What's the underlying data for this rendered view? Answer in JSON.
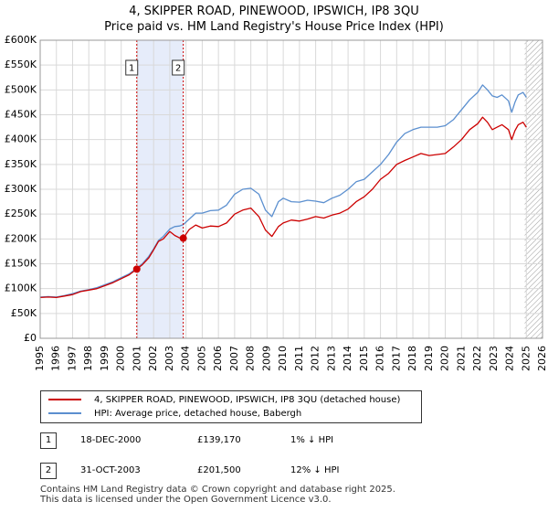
{
  "title": {
    "line1": "4, SKIPPER ROAD, PINEWOOD, IPSWICH, IP8 3QU",
    "line2": "Price paid vs. HM Land Registry's House Price Index (HPI)"
  },
  "colors": {
    "property": "#cc0000",
    "hpi": "#5b8fcf",
    "shade": "#e6ecfa",
    "grid": "#d9d9d9"
  },
  "chart_data": {
    "type": "line",
    "ylim": [
      0,
      600000
    ],
    "xlim": [
      1995,
      2026
    ],
    "y_ticks": [
      0,
      50000,
      100000,
      150000,
      200000,
      250000,
      300000,
      350000,
      400000,
      450000,
      500000,
      550000,
      600000
    ],
    "y_tick_labels": [
      "£0",
      "£50K",
      "£100K",
      "£150K",
      "£200K",
      "£250K",
      "£300K",
      "£350K",
      "£400K",
      "£450K",
      "£500K",
      "£550K",
      "£600K"
    ],
    "x_ticks": [
      1995,
      1996,
      1997,
      1998,
      1999,
      2000,
      2001,
      2002,
      2003,
      2004,
      2005,
      2006,
      2007,
      2008,
      2009,
      2010,
      2011,
      2012,
      2013,
      2014,
      2015,
      2016,
      2017,
      2018,
      2019,
      2020,
      2021,
      2022,
      2023,
      2024,
      2025,
      2026
    ],
    "grid": true,
    "series": [
      {
        "name": "4, SKIPPER ROAD, PINEWOOD, IPSWICH, IP8 3QU (detached house)",
        "color": "#cc0000",
        "x": [
          1995.0,
          1995.5,
          1996.0,
          1996.5,
          1997.0,
          1997.5,
          1998.0,
          1998.5,
          1999.0,
          1999.5,
          2000.0,
          2000.5,
          2000.96,
          2001.3,
          2001.7,
          2002.0,
          2002.3,
          2002.6,
          2003.0,
          2003.3,
          2003.6,
          2003.83,
          2004.2,
          2004.6,
          2005.0,
          2005.5,
          2006.0,
          2006.5,
          2007.0,
          2007.5,
          2008.0,
          2008.5,
          2008.9,
          2009.3,
          2009.7,
          2010.0,
          2010.5,
          2011.0,
          2011.5,
          2012.0,
          2012.5,
          2013.0,
          2013.5,
          2014.0,
          2014.5,
          2015.0,
          2015.5,
          2016.0,
          2016.5,
          2017.0,
          2017.5,
          2018.0,
          2018.5,
          2019.0,
          2019.5,
          2020.0,
          2020.5,
          2021.0,
          2021.5,
          2022.0,
          2022.3,
          2022.6,
          2022.9,
          2023.2,
          2023.5,
          2023.9,
          2024.1,
          2024.3,
          2024.5,
          2024.8,
          2025.0
        ],
        "y": [
          82000,
          83000,
          82000,
          85000,
          88000,
          94000,
          97000,
          100000,
          106000,
          112000,
          120000,
          128000,
          139170,
          148000,
          162000,
          178000,
          195000,
          200000,
          215000,
          207000,
          202000,
          201500,
          219000,
          228000,
          222000,
          226000,
          225000,
          232000,
          250000,
          258000,
          262000,
          245000,
          218000,
          205000,
          225000,
          232000,
          238000,
          236000,
          240000,
          245000,
          242000,
          248000,
          252000,
          260000,
          275000,
          285000,
          300000,
          320000,
          332000,
          350000,
          358000,
          365000,
          372000,
          368000,
          370000,
          372000,
          385000,
          400000,
          420000,
          432000,
          445000,
          435000,
          420000,
          425000,
          430000,
          420000,
          400000,
          418000,
          430000,
          435000,
          425000
        ]
      },
      {
        "name": "HPI: Average price, detached house, Babergh",
        "color": "#5b8fcf",
        "x": [
          1995.0,
          1995.5,
          1996.0,
          1996.5,
          1997.0,
          1997.5,
          1998.0,
          1998.5,
          1999.0,
          1999.5,
          2000.0,
          2000.5,
          2000.96,
          2001.3,
          2001.7,
          2002.0,
          2002.3,
          2002.6,
          2003.0,
          2003.3,
          2003.6,
          2003.83,
          2004.2,
          2004.6,
          2005.0,
          2005.5,
          2006.0,
          2006.5,
          2007.0,
          2007.5,
          2008.0,
          2008.5,
          2008.9,
          2009.3,
          2009.7,
          2010.0,
          2010.5,
          2011.0,
          2011.5,
          2012.0,
          2012.5,
          2013.0,
          2013.5,
          2014.0,
          2014.5,
          2015.0,
          2015.5,
          2016.0,
          2016.5,
          2017.0,
          2017.5,
          2018.0,
          2018.5,
          2019.0,
          2019.5,
          2020.0,
          2020.5,
          2021.0,
          2021.5,
          2022.0,
          2022.3,
          2022.6,
          2022.9,
          2023.2,
          2023.5,
          2023.9,
          2024.1,
          2024.3,
          2024.5,
          2024.8,
          2025.0
        ],
        "y": [
          83000,
          84000,
          83000,
          86000,
          90000,
          95000,
          98000,
          102000,
          108000,
          114000,
          122000,
          130000,
          141000,
          150000,
          165000,
          180000,
          197000,
          205000,
          220000,
          225000,
          226000,
          229000,
          240000,
          252000,
          252000,
          257000,
          258000,
          268000,
          290000,
          300000,
          302000,
          290000,
          258000,
          245000,
          275000,
          282000,
          275000,
          274000,
          278000,
          276000,
          273000,
          282000,
          288000,
          300000,
          315000,
          320000,
          335000,
          350000,
          370000,
          395000,
          412000,
          420000,
          425000,
          425000,
          425000,
          428000,
          440000,
          460000,
          480000,
          495000,
          510000,
          500000,
          488000,
          485000,
          490000,
          478000,
          455000,
          475000,
          490000,
          495000,
          485000
        ]
      }
    ],
    "sales": [
      {
        "label": "1",
        "x": 2000.96,
        "y": 139170
      },
      {
        "label": "2",
        "x": 2003.83,
        "y": 201500
      }
    ],
    "shade_band": [
      2000.96,
      2003.83
    ],
    "hatch_start": 2024.9
  },
  "legend": {
    "property_label": "4, SKIPPER ROAD, PINEWOOD, IPSWICH, IP8 3QU (detached house)",
    "hpi_label": "HPI: Average price, detached house, Babergh"
  },
  "sales_table": [
    {
      "num": "1",
      "date": "18-DEC-2000",
      "price": "£139,170",
      "hpi": "1% ↓ HPI"
    },
    {
      "num": "2",
      "date": "31-OCT-2003",
      "price": "£201,500",
      "hpi": "12% ↓ HPI"
    }
  ],
  "footer": {
    "line1": "Contains HM Land Registry data © Crown copyright and database right 2025.",
    "line2": "This data is licensed under the Open Government Licence v3.0."
  }
}
